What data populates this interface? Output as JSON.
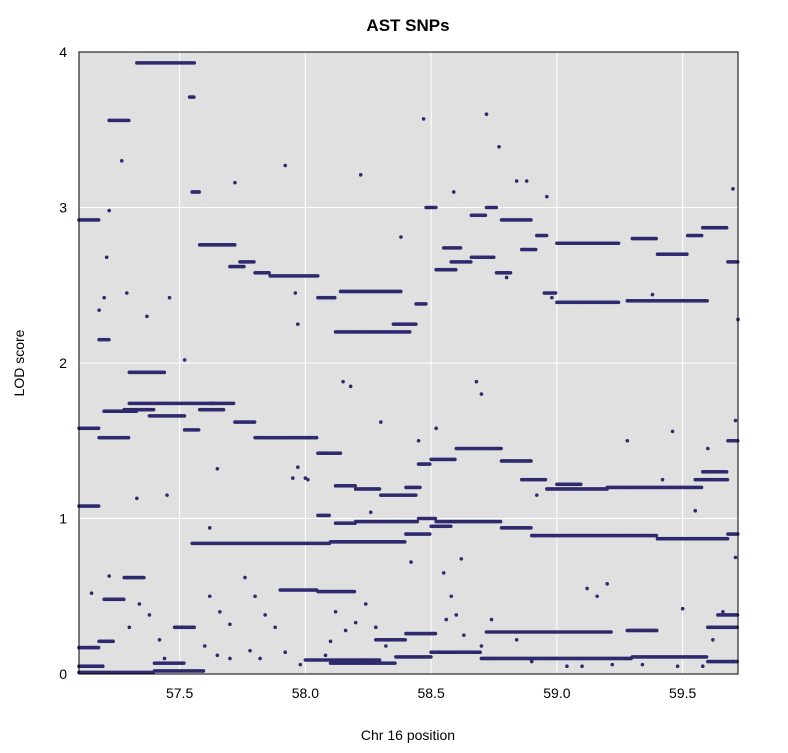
{
  "chart_data": {
    "type": "scatter",
    "title": "AST SNPs",
    "xlabel": "Chr 16 position",
    "ylabel": "LOD score",
    "xlim": [
      57.1,
      59.72
    ],
    "ylim": [
      0,
      4
    ],
    "x_ticks": [
      57.5,
      58.0,
      58.5,
      59.0,
      59.5
    ],
    "x_tick_labels": [
      "57.5",
      "58.0",
      "58.5",
      "59.0",
      "59.5"
    ],
    "y_ticks": [
      0,
      1,
      2,
      3,
      4
    ],
    "y_tick_labels": [
      "0",
      "1",
      "2",
      "3",
      "4"
    ],
    "grid": true,
    "background_color": "#e0e0e0",
    "grid_color": "#ffffff",
    "point_color": "#2e2a6e",
    "series": [
      {
        "segments": [
          [
            57.1,
            57.18,
            2.92
          ],
          [
            57.18,
            57.22,
            2.15
          ],
          [
            57.22,
            57.3,
            3.56
          ],
          [
            57.33,
            57.56,
            3.93
          ],
          [
            57.54,
            57.56,
            3.71
          ],
          [
            57.55,
            57.58,
            3.1
          ],
          [
            57.58,
            57.72,
            2.76
          ],
          [
            57.7,
            57.76,
            2.62
          ],
          [
            57.74,
            57.8,
            2.65
          ],
          [
            57.8,
            57.86,
            2.58
          ],
          [
            57.86,
            58.05,
            2.56
          ],
          [
            58.05,
            58.12,
            2.42
          ],
          [
            58.14,
            58.38,
            2.46
          ],
          [
            58.12,
            58.42,
            2.2
          ],
          [
            58.35,
            58.44,
            2.25
          ],
          [
            58.44,
            58.48,
            2.38
          ],
          [
            58.48,
            58.52,
            3.0
          ],
          [
            58.52,
            58.6,
            2.6
          ],
          [
            58.55,
            58.62,
            2.74
          ],
          [
            58.58,
            58.66,
            2.65
          ],
          [
            58.66,
            58.75,
            2.68
          ],
          [
            58.72,
            58.76,
            3.0
          ],
          [
            58.66,
            58.72,
            2.95
          ],
          [
            58.78,
            58.9,
            2.92
          ],
          [
            58.76,
            58.82,
            2.58
          ],
          [
            58.86,
            58.92,
            2.73
          ],
          [
            58.92,
            58.96,
            2.82
          ],
          [
            58.95,
            59.0,
            2.45
          ],
          [
            59.0,
            59.25,
            2.77
          ],
          [
            59.0,
            59.25,
            2.39
          ],
          [
            59.28,
            59.6,
            2.4
          ],
          [
            59.3,
            59.4,
            2.8
          ],
          [
            59.4,
            59.52,
            2.7
          ],
          [
            59.52,
            59.58,
            2.82
          ],
          [
            59.58,
            59.68,
            2.87
          ],
          [
            59.68,
            59.72,
            2.65
          ],
          [
            57.1,
            57.18,
            1.58
          ],
          [
            57.18,
            57.3,
            1.52
          ],
          [
            57.2,
            57.33,
            1.69
          ],
          [
            57.28,
            57.4,
            1.7
          ],
          [
            57.3,
            57.44,
            1.94
          ],
          [
            57.3,
            57.64,
            1.74
          ],
          [
            57.38,
            57.52,
            1.66
          ],
          [
            57.52,
            57.58,
            1.57
          ],
          [
            57.58,
            57.68,
            1.7
          ],
          [
            57.62,
            57.72,
            1.74
          ],
          [
            57.72,
            57.8,
            1.62
          ],
          [
            57.8,
            57.9,
            1.52
          ],
          [
            57.9,
            58.05,
            1.52
          ],
          [
            58.05,
            58.14,
            1.42
          ],
          [
            58.12,
            58.2,
            1.21
          ],
          [
            58.2,
            58.3,
            1.19
          ],
          [
            58.3,
            58.44,
            1.15
          ],
          [
            58.4,
            58.46,
            1.2
          ],
          [
            58.45,
            58.5,
            1.35
          ],
          [
            58.5,
            58.6,
            1.38
          ],
          [
            58.6,
            58.78,
            1.45
          ],
          [
            58.78,
            58.9,
            1.37
          ],
          [
            58.86,
            58.96,
            1.25
          ],
          [
            58.96,
            59.2,
            1.19
          ],
          [
            59.0,
            59.1,
            1.22
          ],
          [
            59.2,
            59.28,
            1.2
          ],
          [
            59.28,
            59.58,
            1.2
          ],
          [
            59.55,
            59.68,
            1.25
          ],
          [
            59.58,
            59.68,
            1.3
          ],
          [
            59.68,
            59.72,
            1.5
          ],
          [
            57.1,
            57.18,
            1.08
          ],
          [
            58.05,
            58.1,
            1.02
          ],
          [
            58.12,
            58.2,
            0.97
          ],
          [
            58.2,
            58.45,
            0.98
          ],
          [
            58.45,
            58.52,
            1.0
          ],
          [
            58.52,
            58.78,
            0.98
          ],
          [
            58.78,
            58.9,
            0.94
          ],
          [
            58.9,
            59.4,
            0.89
          ],
          [
            59.4,
            59.68,
            0.87
          ],
          [
            59.68,
            59.72,
            0.9
          ],
          [
            57.55,
            58.1,
            0.84
          ],
          [
            58.1,
            58.4,
            0.85
          ],
          [
            58.4,
            58.5,
            0.9
          ],
          [
            58.5,
            58.58,
            0.95
          ],
          [
            57.9,
            58.05,
            0.54
          ],
          [
            58.05,
            58.2,
            0.53
          ],
          [
            58.28,
            58.4,
            0.22
          ],
          [
            58.4,
            58.52,
            0.26
          ],
          [
            58.72,
            59.22,
            0.27
          ],
          [
            59.28,
            59.4,
            0.28
          ],
          [
            59.6,
            59.72,
            0.3
          ],
          [
            59.64,
            59.72,
            0.38
          ],
          [
            57.1,
            57.18,
            0.17
          ],
          [
            57.18,
            57.24,
            0.21
          ],
          [
            57.2,
            57.28,
            0.48
          ],
          [
            57.28,
            57.36,
            0.62
          ],
          [
            57.48,
            57.56,
            0.3
          ],
          [
            57.4,
            57.52,
            0.07
          ],
          [
            57.1,
            57.2,
            0.05
          ],
          [
            58.0,
            58.3,
            0.09
          ],
          [
            58.1,
            58.36,
            0.07
          ],
          [
            58.36,
            58.5,
            0.11
          ],
          [
            58.5,
            58.7,
            0.14
          ],
          [
            58.7,
            59.0,
            0.1
          ],
          [
            59.0,
            59.3,
            0.1
          ],
          [
            59.3,
            59.6,
            0.11
          ],
          [
            59.6,
            59.72,
            0.08
          ],
          [
            57.1,
            57.4,
            0.01
          ],
          [
            57.4,
            57.6,
            0.02
          ]
        ],
        "scatter_points": [
          [
            57.15,
            0.52
          ],
          [
            57.22,
            0.63
          ],
          [
            57.21,
            2.68
          ],
          [
            57.18,
            2.34
          ],
          [
            57.2,
            2.42
          ],
          [
            57.22,
            2.98
          ],
          [
            57.27,
            3.3
          ],
          [
            57.29,
            2.45
          ],
          [
            57.33,
            1.13
          ],
          [
            57.37,
            2.3
          ],
          [
            57.45,
            1.15
          ],
          [
            57.46,
            2.42
          ],
          [
            57.52,
            2.02
          ],
          [
            57.62,
            0.94
          ],
          [
            57.65,
            1.32
          ],
          [
            57.72,
            3.16
          ],
          [
            57.92,
            3.27
          ],
          [
            57.95,
            1.26
          ],
          [
            57.97,
            1.33
          ],
          [
            58.0,
            1.26
          ],
          [
            58.01,
            1.25
          ],
          [
            57.96,
            2.45
          ],
          [
            57.97,
            2.25
          ],
          [
            58.1,
            0.21
          ],
          [
            58.08,
            0.12
          ],
          [
            58.15,
            1.88
          ],
          [
            58.18,
            1.85
          ],
          [
            58.22,
            3.21
          ],
          [
            58.26,
            1.04
          ],
          [
            58.3,
            1.62
          ],
          [
            58.32,
            0.18
          ],
          [
            58.38,
            2.81
          ],
          [
            58.4,
            0.9
          ],
          [
            58.42,
            0.72
          ],
          [
            58.45,
            1.5
          ],
          [
            58.47,
            3.57
          ],
          [
            58.52,
            1.58
          ],
          [
            58.55,
            0.65
          ],
          [
            58.58,
            0.5
          ],
          [
            58.59,
            3.1
          ],
          [
            58.62,
            0.74
          ],
          [
            58.63,
            0.25
          ],
          [
            58.68,
            1.88
          ],
          [
            58.7,
            1.8
          ],
          [
            58.72,
            3.6
          ],
          [
            58.77,
            3.39
          ],
          [
            58.8,
            2.55
          ],
          [
            58.84,
            3.17
          ],
          [
            58.88,
            3.17
          ],
          [
            58.92,
            1.15
          ],
          [
            58.96,
            3.07
          ],
          [
            58.98,
            2.42
          ],
          [
            59.08,
            1.22
          ],
          [
            59.12,
            0.55
          ],
          [
            59.16,
            0.5
          ],
          [
            59.2,
            0.58
          ],
          [
            59.28,
            1.5
          ],
          [
            59.38,
            2.44
          ],
          [
            59.42,
            1.25
          ],
          [
            59.46,
            1.56
          ],
          [
            59.5,
            0.42
          ],
          [
            59.55,
            1.05
          ],
          [
            59.6,
            1.45
          ],
          [
            59.62,
            0.22
          ],
          [
            59.66,
            0.4
          ],
          [
            59.7,
            3.12
          ],
          [
            59.7,
            0.08
          ],
          [
            59.71,
            1.63
          ],
          [
            59.71,
            0.75
          ],
          [
            59.72,
            2.28
          ],
          [
            57.62,
            0.5
          ],
          [
            57.66,
            0.4
          ],
          [
            57.7,
            0.32
          ],
          [
            57.76,
            0.62
          ],
          [
            57.8,
            0.5
          ],
          [
            57.84,
            0.38
          ],
          [
            57.88,
            0.3
          ],
          [
            58.12,
            0.4
          ],
          [
            58.16,
            0.28
          ],
          [
            58.2,
            0.33
          ],
          [
            58.24,
            0.45
          ],
          [
            58.28,
            0.3
          ],
          [
            58.56,
            0.35
          ],
          [
            58.6,
            0.38
          ],
          [
            58.7,
            0.18
          ],
          [
            58.74,
            0.35
          ],
          [
            58.84,
            0.22
          ],
          [
            58.9,
            0.08
          ],
          [
            59.04,
            0.05
          ],
          [
            59.1,
            0.05
          ],
          [
            59.22,
            0.06
          ],
          [
            59.34,
            0.06
          ],
          [
            59.48,
            0.05
          ],
          [
            59.58,
            0.05
          ],
          [
            57.3,
            0.3
          ],
          [
            57.34,
            0.45
          ],
          [
            57.38,
            0.38
          ],
          [
            57.42,
            0.22
          ],
          [
            57.44,
            0.1
          ],
          [
            57.6,
            0.18
          ],
          [
            57.65,
            0.12
          ],
          [
            57.7,
            0.1
          ],
          [
            57.78,
            0.15
          ],
          [
            57.82,
            0.1
          ],
          [
            57.92,
            0.14
          ],
          [
            57.98,
            0.06
          ]
        ]
      }
    ]
  }
}
